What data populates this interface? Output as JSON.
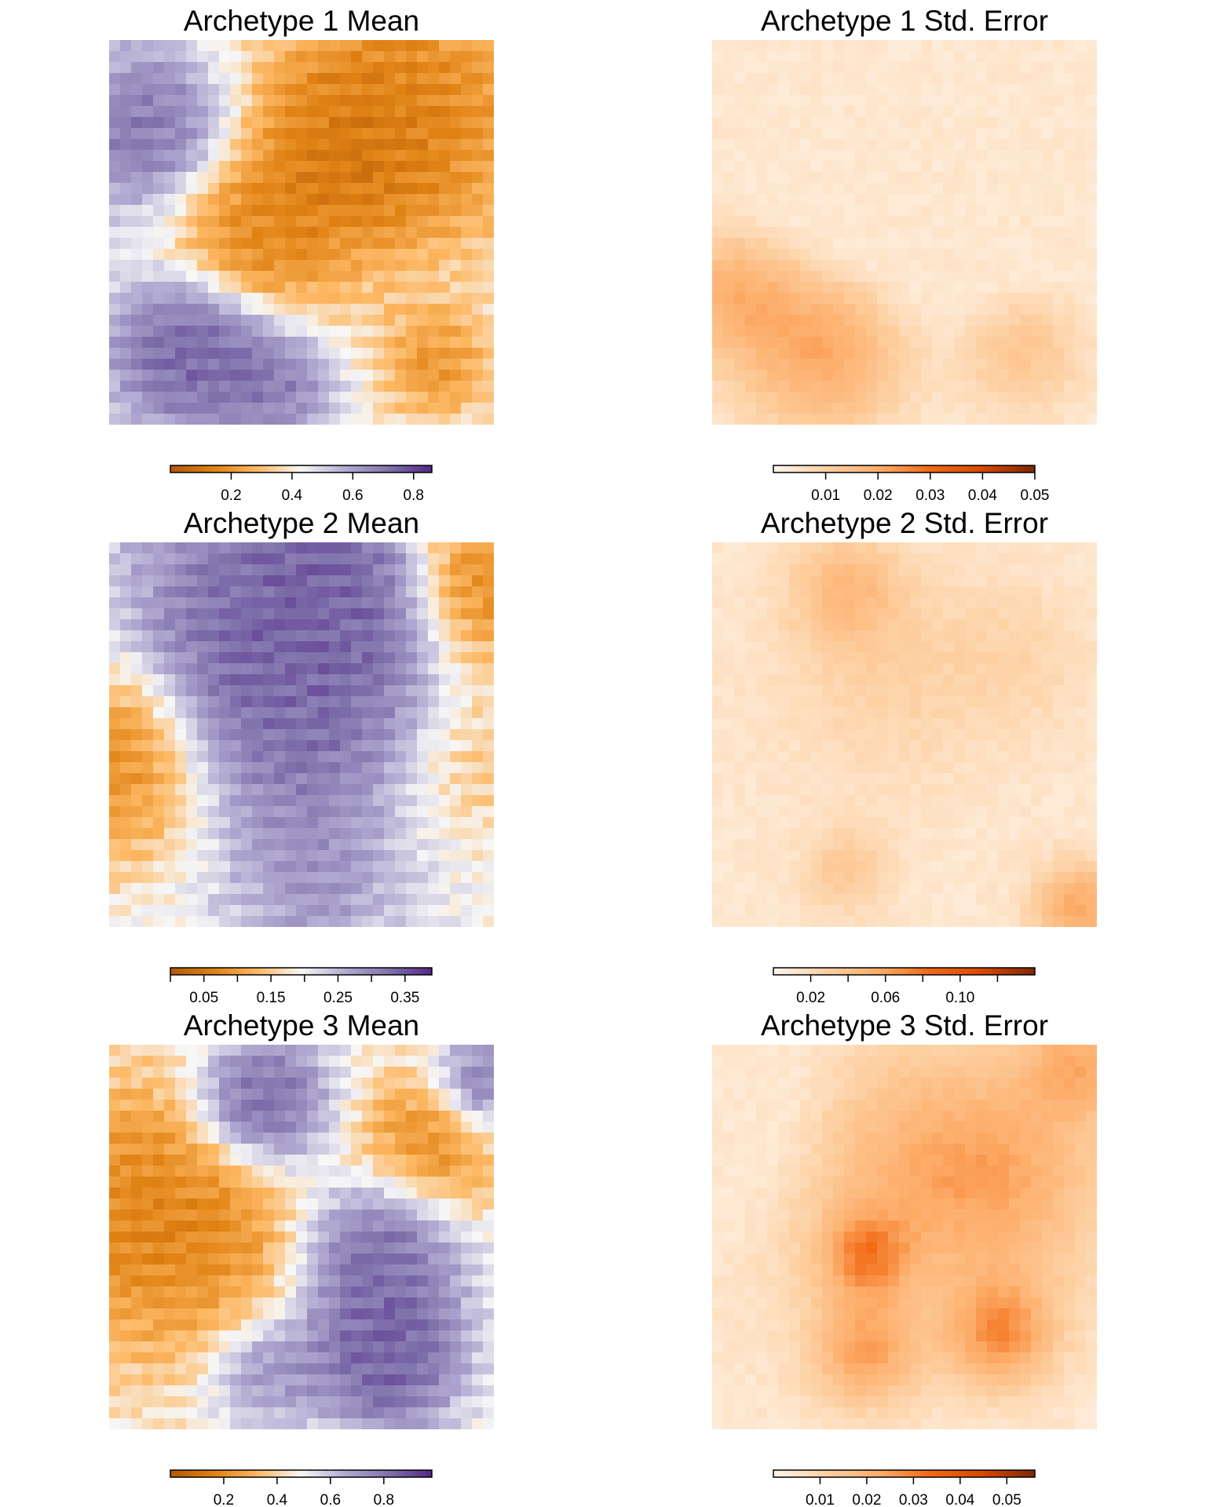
{
  "chart_data": [
    {
      "type": "heatmap",
      "title": "Archetype 1 Mean",
      "colormap": [
        "#b35806",
        "#e08214",
        "#fdb863",
        "#f7f7f7",
        "#b2abd2",
        "#8073ac",
        "#542788"
      ],
      "colorbar": {
        "range": [
          0.0,
          0.86
        ],
        "ticks": [
          0.2,
          0.4,
          0.6,
          0.8
        ],
        "tick_labels": [
          "0.2",
          "0.4",
          "0.6",
          "0.8"
        ]
      }
    },
    {
      "type": "heatmap",
      "title": "Archetype 1 Std. Error",
      "colormap": [
        "#fff5eb",
        "#fdd0a2",
        "#fdae6b",
        "#f16913",
        "#d94801",
        "#7f2704"
      ],
      "colorbar": {
        "range": [
          0.0,
          0.05
        ],
        "ticks": [
          0.01,
          0.02,
          0.03,
          0.04,
          0.05
        ],
        "tick_labels": [
          "0.01",
          "0.02",
          "0.03",
          "0.04",
          "0.05"
        ]
      }
    },
    {
      "type": "heatmap",
      "title": "Archetype 2 Mean",
      "colormap": [
        "#b35806",
        "#e08214",
        "#fdb863",
        "#f7f7f7",
        "#b2abd2",
        "#8073ac",
        "#542788"
      ],
      "colorbar": {
        "range": [
          0.0,
          0.39
        ],
        "ticks": [
          0.0,
          0.05,
          0.1,
          0.15,
          0.2,
          0.25,
          0.3,
          0.35
        ],
        "tick_labels": [
          "",
          "0.05",
          "",
          "0.15",
          "",
          "0.25",
          "",
          "0.35"
        ]
      }
    },
    {
      "type": "heatmap",
      "title": "Archetype 2 Std. Error",
      "colormap": [
        "#fff5eb",
        "#fdd0a2",
        "#fdae6b",
        "#f16913",
        "#d94801",
        "#7f2704"
      ],
      "colorbar": {
        "range": [
          0.0,
          0.14
        ],
        "ticks": [
          0.02,
          0.04,
          0.06,
          0.08,
          0.1,
          0.12
        ],
        "tick_labels": [
          "0.02",
          "",
          "0.06",
          "",
          "0.10",
          ""
        ]
      }
    },
    {
      "type": "heatmap",
      "title": "Archetype 3 Mean",
      "colormap": [
        "#b35806",
        "#e08214",
        "#fdb863",
        "#f7f7f7",
        "#b2abd2",
        "#8073ac",
        "#542788"
      ],
      "colorbar": {
        "range": [
          0.0,
          0.98
        ],
        "ticks": [
          0.2,
          0.4,
          0.6,
          0.8
        ],
        "tick_labels": [
          "0.2",
          "0.4",
          "0.6",
          "0.8"
        ]
      }
    },
    {
      "type": "heatmap",
      "title": "Archetype 3 Std. Error",
      "colormap": [
        "#fff5eb",
        "#fdd0a2",
        "#fdae6b",
        "#f16913",
        "#d94801",
        "#7f2704"
      ],
      "colorbar": {
        "range": [
          0.0,
          0.056
        ],
        "ticks": [
          0.01,
          0.02,
          0.03,
          0.04,
          0.05
        ],
        "tick_labels": [
          "0.01",
          "0.02",
          "0.03",
          "0.04",
          "0.05"
        ]
      }
    }
  ]
}
